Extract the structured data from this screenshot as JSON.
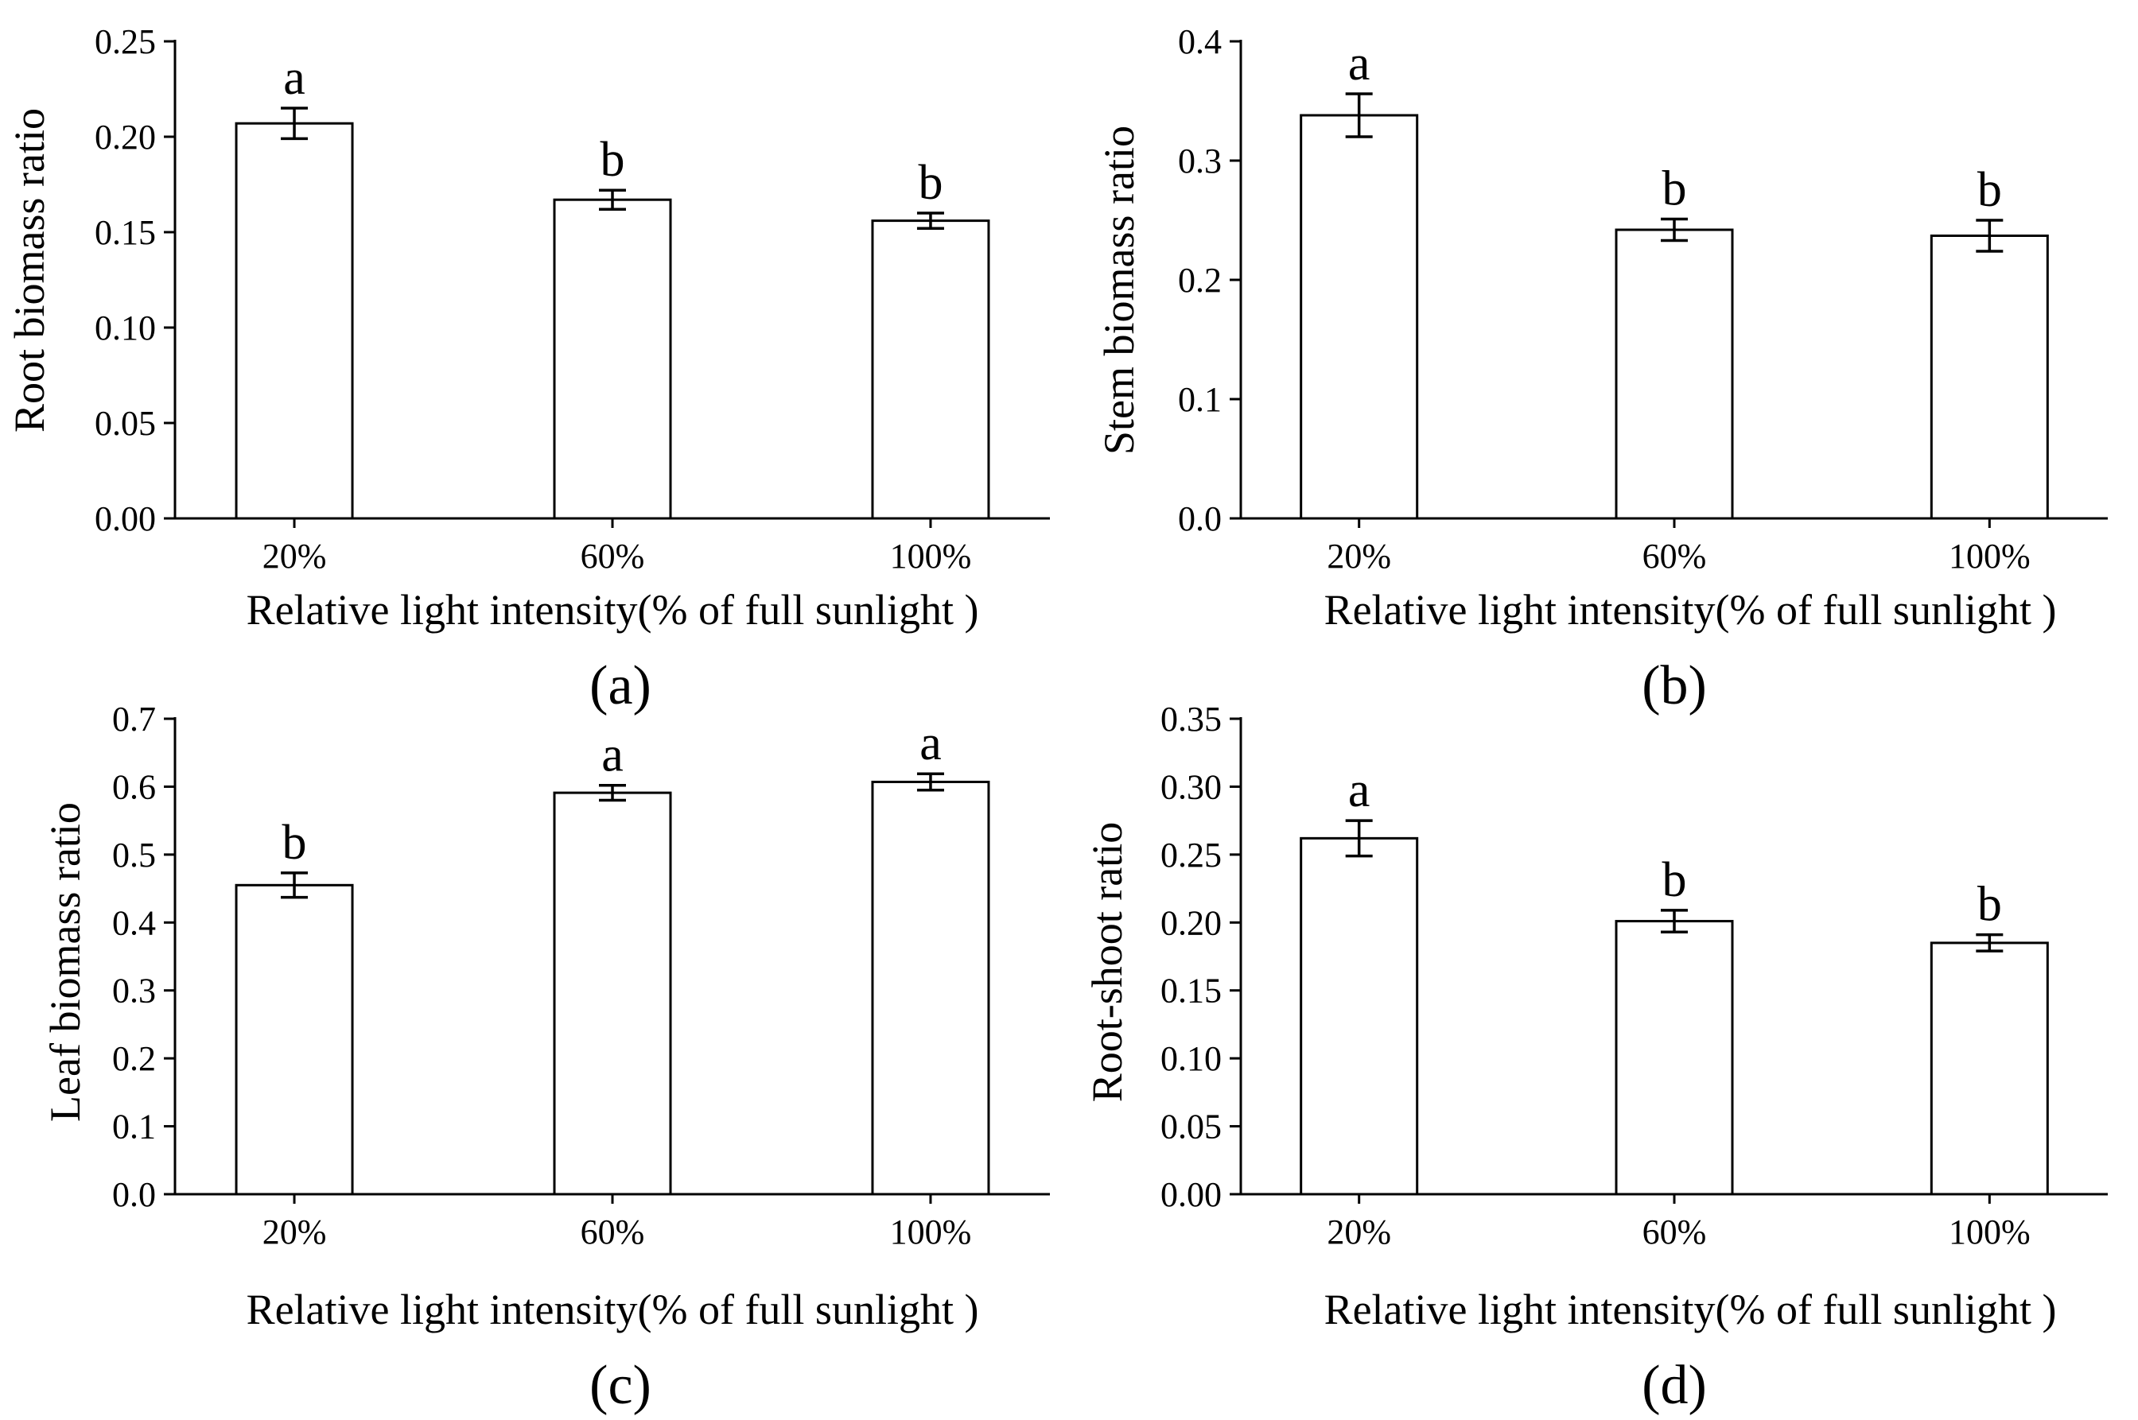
{
  "figure": {
    "background": "#ffffff",
    "bar_fill": "#ffffff",
    "stroke": "#000000"
  },
  "chart_data": [
    {
      "type": "bar",
      "panel_label": "(a)",
      "categories": [
        "20%",
        "60%",
        "100%"
      ],
      "values": [
        0.207,
        0.167,
        0.156
      ],
      "errors": [
        0.008,
        0.005,
        0.004
      ],
      "significance": [
        "a",
        "b",
        "b"
      ],
      "xlabel": "Relative light intensity(% of full sunlight )",
      "ylabel": "Root biomass ratio",
      "ylim": [
        0,
        0.25
      ],
      "yticks": [
        0.0,
        0.05,
        0.1,
        0.15,
        0.2,
        0.25
      ],
      "ytick_labels": [
        "0.00",
        "0.05",
        "0.10",
        "0.15",
        "0.20",
        "0.25"
      ]
    },
    {
      "type": "bar",
      "panel_label": "(b)",
      "categories": [
        "20%",
        "60%",
        "100%"
      ],
      "values": [
        0.338,
        0.242,
        0.237
      ],
      "errors": [
        0.018,
        0.009,
        0.013
      ],
      "significance": [
        "a",
        "b",
        "b"
      ],
      "xlabel": "Relative light intensity(% of full sunlight )",
      "ylabel": "Stem biomass ratio",
      "ylim": [
        0,
        0.4
      ],
      "yticks": [
        0.0,
        0.1,
        0.2,
        0.3,
        0.4
      ],
      "ytick_labels": [
        "0.0",
        "0.1",
        "0.2",
        "0.3",
        "0.4"
      ]
    },
    {
      "type": "bar",
      "panel_label": "(c)",
      "categories": [
        "20%",
        "60%",
        "100%"
      ],
      "values": [
        0.455,
        0.591,
        0.607
      ],
      "errors": [
        0.018,
        0.011,
        0.012
      ],
      "significance": [
        "b",
        "a",
        "a"
      ],
      "xlabel": "Relative light intensity(% of full sunlight )",
      "ylabel": "Leaf biomass ratio",
      "ylim": [
        0,
        0.7
      ],
      "yticks": [
        0.0,
        0.1,
        0.2,
        0.3,
        0.4,
        0.5,
        0.6,
        0.7
      ],
      "ytick_labels": [
        "0.0",
        "0.1",
        "0.2",
        "0.3",
        "0.4",
        "0.5",
        "0.6",
        "0.7"
      ]
    },
    {
      "type": "bar",
      "panel_label": "(d)",
      "categories": [
        "20%",
        "60%",
        "100%"
      ],
      "values": [
        0.262,
        0.201,
        0.185
      ],
      "errors": [
        0.013,
        0.008,
        0.006
      ],
      "significance": [
        "a",
        "b",
        "b"
      ],
      "xlabel": "Relative light intensity(% of full sunlight )",
      "ylabel": "Root-shoot ratio",
      "ylim": [
        0,
        0.35
      ],
      "yticks": [
        0.0,
        0.05,
        0.1,
        0.15,
        0.2,
        0.25,
        0.3,
        0.35
      ],
      "ytick_labels": [
        "0.00",
        "0.05",
        "0.10",
        "0.15",
        "0.20",
        "0.25",
        "0.30",
        "0.35"
      ]
    }
  ]
}
